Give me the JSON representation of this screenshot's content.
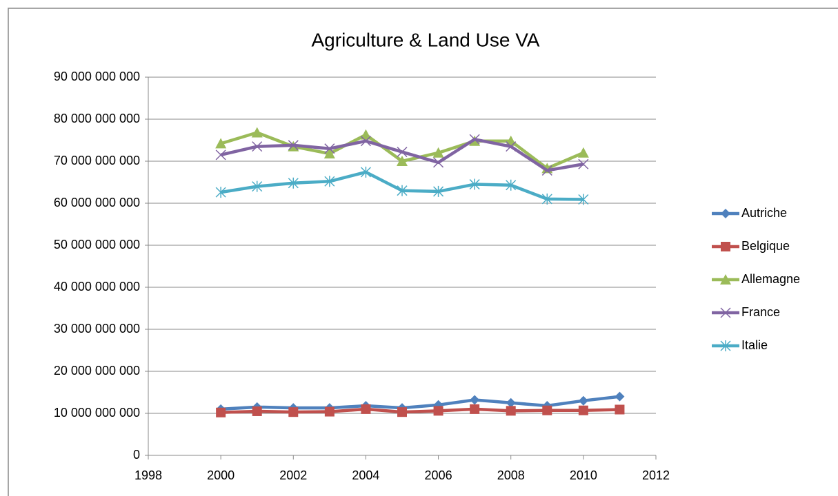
{
  "chart_data": {
    "type": "line",
    "title": "Agriculture & Land Use VA",
    "x": [
      2000,
      2001,
      2002,
      2003,
      2004,
      2005,
      2006,
      2007,
      2008,
      2009,
      2010,
      2011
    ],
    "series": [
      {
        "name": "Autriche",
        "color": "#4f81bd",
        "marker": "diamond",
        "values": [
          11000000000,
          11500000000,
          11300000000,
          11300000000,
          11800000000,
          11300000000,
          12000000000,
          13200000000,
          12500000000,
          11800000000,
          13000000000,
          14000000000
        ]
      },
      {
        "name": "Belgique",
        "color": "#c0504d",
        "marker": "square",
        "values": [
          10200000000,
          10500000000,
          10300000000,
          10400000000,
          11000000000,
          10300000000,
          10600000000,
          11000000000,
          10600000000,
          10700000000,
          10700000000,
          10900000000
        ]
      },
      {
        "name": "Allemagne",
        "color": "#9bbb59",
        "marker": "triangle",
        "values": [
          74200000000,
          76800000000,
          73500000000,
          71800000000,
          76300000000,
          70000000000,
          72000000000,
          74800000000,
          74800000000,
          68300000000,
          72000000000,
          null
        ]
      },
      {
        "name": "France",
        "color": "#8064a2",
        "marker": "x",
        "values": [
          71500000000,
          73500000000,
          73800000000,
          73000000000,
          74800000000,
          72200000000,
          69700000000,
          75200000000,
          73500000000,
          67800000000,
          69300000000,
          null
        ]
      },
      {
        "name": "Italie",
        "color": "#4bacc6",
        "marker": "star",
        "values": [
          62600000000,
          64000000000,
          64800000000,
          65200000000,
          67400000000,
          63000000000,
          62800000000,
          64500000000,
          64300000000,
          61000000000,
          60900000000,
          null
        ]
      }
    ],
    "xlim": [
      1998,
      2012
    ],
    "xticks": [
      1998,
      2000,
      2002,
      2004,
      2006,
      2008,
      2010,
      2012
    ],
    "ylim": [
      0,
      90000000000
    ],
    "yticks": [
      0,
      {
        "value": 10000000000,
        "label": "10 000 000 000"
      },
      {
        "value": 20000000000,
        "label": "20 000 000 000"
      },
      {
        "value": 30000000000,
        "label": "30 000 000 000"
      },
      {
        "value": 40000000000,
        "label": "40 000 000 000"
      },
      {
        "value": 50000000000,
        "label": "50 000 000 000"
      },
      {
        "value": 60000000000,
        "label": "60 000 000 000"
      },
      {
        "value": 70000000000,
        "label": "70 000 000 000"
      },
      {
        "value": 80000000000,
        "label": "80 000 000 000"
      },
      {
        "value": 90000000000,
        "label": "90 000 000 000"
      }
    ],
    "grid": true,
    "legend": "right"
  }
}
